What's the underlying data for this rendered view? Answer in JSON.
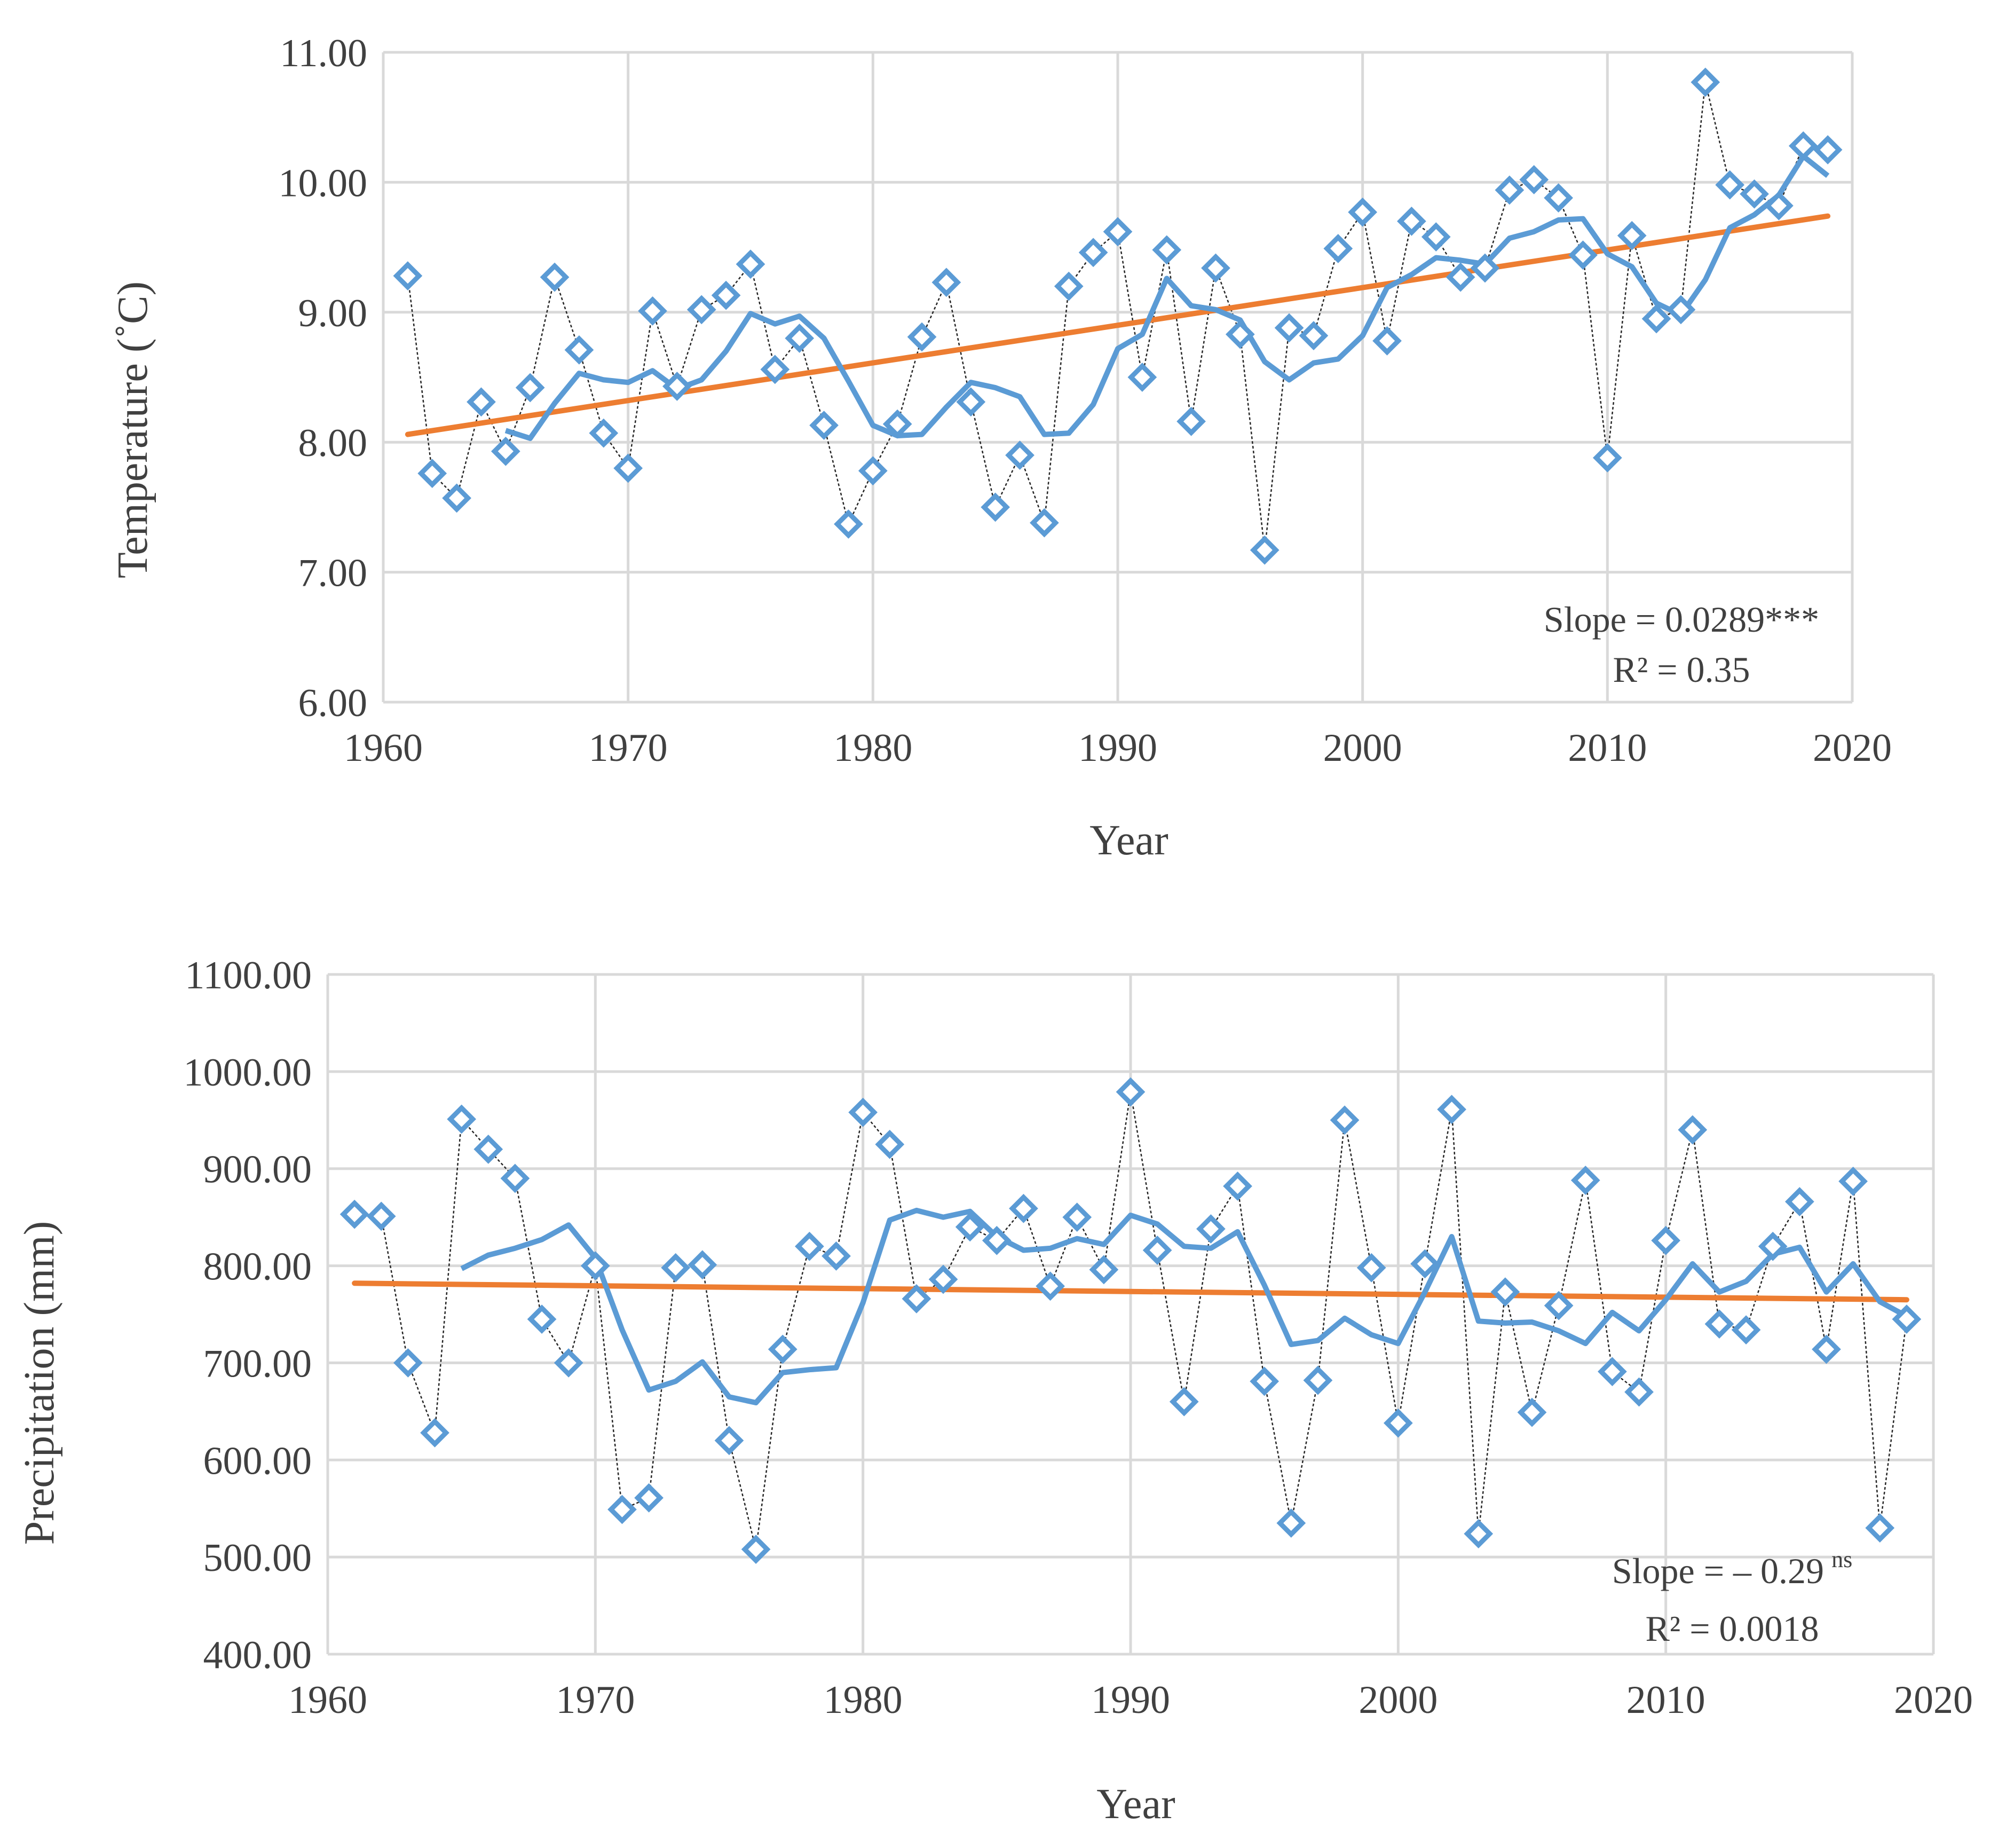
{
  "chart_data": [
    {
      "type": "line",
      "title": "",
      "xlabel": "Year",
      "ylabel": "Temperature (˚C)",
      "xlim": [
        1960,
        2020
      ],
      "ylim": [
        6.0,
        11.0
      ],
      "xticks": [
        1960,
        1970,
        1980,
        1990,
        2000,
        2010,
        2020
      ],
      "yticks": [
        "6.00",
        "7.00",
        "8.00",
        "9.00",
        "10.00",
        "11.00"
      ],
      "grid": true,
      "colors": {
        "series": "#5b9bd5",
        "trend": "#ed7d31",
        "raw_line": "#262626"
      },
      "series": [
        {
          "values": [
            [
              1961,
              9.28
            ],
            [
              1962,
              7.76
            ],
            [
              1963,
              7.57
            ],
            [
              1964,
              8.31
            ],
            [
              1965,
              7.93
            ],
            [
              1966,
              8.42
            ],
            [
              1967,
              9.27
            ],
            [
              1968,
              8.71
            ],
            [
              1969,
              8.07
            ],
            [
              1970,
              7.8
            ],
            [
              1971,
              9.01
            ],
            [
              1972,
              8.43
            ],
            [
              1973,
              9.02
            ],
            [
              1974,
              9.13
            ],
            [
              1975,
              9.37
            ],
            [
              1976,
              8.56
            ],
            [
              1977,
              8.8
            ],
            [
              1978,
              8.13
            ],
            [
              1979,
              7.37
            ],
            [
              1980,
              7.78
            ],
            [
              1981,
              8.14
            ],
            [
              1982,
              8.81
            ],
            [
              1983,
              9.23
            ],
            [
              1984,
              8.31
            ],
            [
              1985,
              7.5
            ],
            [
              1986,
              7.9
            ],
            [
              1987,
              7.38
            ],
            [
              1988,
              9.2
            ],
            [
              1989,
              9.46
            ],
            [
              1990,
              9.62
            ],
            [
              1991,
              8.5
            ],
            [
              1992,
              9.48
            ],
            [
              1993,
              8.16
            ],
            [
              1994,
              9.34
            ],
            [
              1995,
              8.83
            ],
            [
              1996,
              7.17
            ],
            [
              1997,
              8.88
            ],
            [
              1998,
              8.82
            ],
            [
              1999,
              9.49
            ],
            [
              2000,
              9.77
            ],
            [
              2001,
              8.78
            ],
            [
              2002,
              9.7
            ],
            [
              2003,
              9.58
            ],
            [
              2004,
              9.27
            ],
            [
              2005,
              9.34
            ],
            [
              2006,
              9.94
            ],
            [
              2007,
              10.02
            ],
            [
              2008,
              9.88
            ],
            [
              2009,
              9.44
            ],
            [
              2010,
              7.88
            ],
            [
              2011,
              9.59
            ],
            [
              2012,
              8.95
            ],
            [
              2013,
              9.02
            ],
            [
              2014,
              10.77
            ],
            [
              2015,
              9.98
            ],
            [
              2016,
              9.91
            ],
            [
              2017,
              9.82
            ],
            [
              2018,
              10.28
            ],
            [
              2019,
              10.25
            ]
          ]
        },
        {
          "values": [
            [
              1965,
              8.09
            ],
            [
              1966,
              8.03
            ],
            [
              1967,
              8.3
            ],
            [
              1968,
              8.53
            ],
            [
              1969,
              8.48
            ],
            [
              1970,
              8.46
            ],
            [
              1971,
              8.55
            ],
            [
              1972,
              8.41
            ],
            [
              1973,
              8.48
            ],
            [
              1974,
              8.7
            ],
            [
              1975,
              8.99
            ],
            [
              1976,
              8.91
            ],
            [
              1977,
              8.97
            ],
            [
              1978,
              8.8
            ],
            [
              1979,
              8.47
            ],
            [
              1980,
              8.13
            ],
            [
              1981,
              8.05
            ],
            [
              1982,
              8.06
            ],
            [
              1983,
              8.27
            ],
            [
              1984,
              8.46
            ],
            [
              1985,
              8.42
            ],
            [
              1986,
              8.35
            ],
            [
              1987,
              8.06
            ],
            [
              1988,
              8.07
            ],
            [
              1989,
              8.29
            ],
            [
              1990,
              8.72
            ],
            [
              1991,
              8.83
            ],
            [
              1992,
              9.26
            ],
            [
              1993,
              9.05
            ],
            [
              1994,
              9.02
            ],
            [
              1995,
              8.94
            ],
            [
              1996,
              8.62
            ],
            [
              1997,
              8.48
            ],
            [
              1998,
              8.61
            ],
            [
              1999,
              8.64
            ],
            [
              2000,
              8.82
            ],
            [
              2001,
              9.19
            ],
            [
              2002,
              9.29
            ],
            [
              2003,
              9.42
            ],
            [
              2004,
              9.4
            ],
            [
              2005,
              9.37
            ],
            [
              2006,
              9.57
            ],
            [
              2007,
              9.62
            ],
            [
              2008,
              9.71
            ],
            [
              2009,
              9.72
            ],
            [
              2010,
              9.45
            ],
            [
              2011,
              9.35
            ],
            [
              2012,
              9.07
            ],
            [
              2013,
              8.98
            ],
            [
              2014,
              9.25
            ],
            [
              2015,
              9.65
            ],
            [
              2016,
              9.75
            ],
            [
              2017,
              9.9
            ],
            [
              2018,
              10.2
            ],
            [
              2019,
              10.05
            ]
          ]
        },
        {
          "values": [
            [
              1961,
              8.06
            ],
            [
              2019,
              9.74
            ]
          ]
        }
      ],
      "annotations": {
        "slope": "Slope = 0.0289***",
        "r2": "R² = 0.35"
      }
    },
    {
      "type": "line",
      "title": "",
      "xlabel": "Year",
      "ylabel": "Precipitation (mm)",
      "xlim": [
        1960,
        2020
      ],
      "ylim": [
        400,
        1100
      ],
      "xticks": [
        1960,
        1970,
        1980,
        1990,
        2000,
        2010,
        2020
      ],
      "yticks": [
        "400.00",
        "500.00",
        "600.00",
        "700.00",
        "800.00",
        "900.00",
        "1000.00",
        "1100.00"
      ],
      "grid": true,
      "colors": {
        "series": "#5b9bd5",
        "trend": "#ed7d31",
        "raw_line": "#262626"
      },
      "series": [
        {
          "values": [
            [
              1961,
              853
            ],
            [
              1962,
              851
            ],
            [
              1963,
              700
            ],
            [
              1964,
              628
            ],
            [
              1965,
              951
            ],
            [
              1966,
              920
            ],
            [
              1967,
              890
            ],
            [
              1968,
              745
            ],
            [
              1969,
              700
            ],
            [
              1970,
              800
            ],
            [
              1971,
              549
            ],
            [
              1972,
              561
            ],
            [
              1973,
              798
            ],
            [
              1974,
              801
            ],
            [
              1975,
              620
            ],
            [
              1976,
              508
            ],
            [
              1977,
              714
            ],
            [
              1978,
              820
            ],
            [
              1979,
              810
            ],
            [
              1980,
              958
            ],
            [
              1981,
              925
            ],
            [
              1982,
              766
            ],
            [
              1983,
              786
            ],
            [
              1984,
              840
            ],
            [
              1985,
              826
            ],
            [
              1986,
              859
            ],
            [
              1987,
              779
            ],
            [
              1988,
              850
            ],
            [
              1989,
              796
            ],
            [
              1990,
              979
            ],
            [
              1991,
              816
            ],
            [
              1992,
              660
            ],
            [
              1993,
              838
            ],
            [
              1994,
              882
            ],
            [
              1995,
              681
            ],
            [
              1996,
              535
            ],
            [
              1997,
              682
            ],
            [
              1998,
              950
            ],
            [
              1999,
              798
            ],
            [
              2000,
              638
            ],
            [
              2001,
              802
            ],
            [
              2002,
              961
            ],
            [
              2003,
              524
            ],
            [
              2004,
              773
            ],
            [
              2005,
              649
            ],
            [
              2006,
              759
            ],
            [
              2007,
              888
            ],
            [
              2008,
              691
            ],
            [
              2009,
              670
            ],
            [
              2010,
              826
            ],
            [
              2011,
              940
            ],
            [
              2012,
              740
            ],
            [
              2013,
              734
            ],
            [
              2014,
              820
            ],
            [
              2015,
              866
            ],
            [
              2016,
              714
            ],
            [
              2017,
              887
            ],
            [
              2018,
              530
            ],
            [
              2019,
              745
            ]
          ]
        },
        {
          "values": [
            [
              1965,
              797
            ],
            [
              1966,
              811
            ],
            [
              1967,
              818
            ],
            [
              1968,
              827
            ],
            [
              1969,
              842
            ],
            [
              1970,
              808
            ],
            [
              1971,
              734
            ],
            [
              1972,
              672
            ],
            [
              1973,
              681
            ],
            [
              1974,
              701
            ],
            [
              1975,
              665
            ],
            [
              1976,
              659
            ],
            [
              1977,
              690
            ],
            [
              1978,
              693
            ],
            [
              1979,
              695
            ],
            [
              1980,
              762
            ],
            [
              1981,
              847
            ],
            [
              1982,
              857
            ],
            [
              1983,
              850
            ],
            [
              1984,
              856
            ],
            [
              1985,
              830
            ],
            [
              1986,
              816
            ],
            [
              1987,
              818
            ],
            [
              1988,
              828
            ],
            [
              1989,
              822
            ],
            [
              1990,
              852
            ],
            [
              1991,
              843
            ],
            [
              1992,
              820
            ],
            [
              1993,
              818
            ],
            [
              1994,
              835
            ],
            [
              1995,
              780
            ],
            [
              1996,
              719
            ],
            [
              1997,
              723
            ],
            [
              1998,
              746
            ],
            [
              1999,
              729
            ],
            [
              2000,
              720
            ],
            [
              2001,
              773
            ],
            [
              2002,
              830
            ],
            [
              2003,
              743
            ],
            [
              2004,
              741
            ],
            [
              2005,
              742
            ],
            [
              2006,
              733
            ],
            [
              2007,
              720
            ],
            [
              2008,
              752
            ],
            [
              2009,
              733
            ],
            [
              2010,
              765
            ],
            [
              2011,
              802
            ],
            [
              2012,
              773
            ],
            [
              2013,
              784
            ],
            [
              2014,
              812
            ],
            [
              2015,
              819
            ],
            [
              2016,
              773
            ],
            [
              2017,
              802
            ],
            [
              2018,
              763
            ],
            [
              2019,
              748
            ]
          ]
        },
        {
          "values": [
            [
              1961,
              782
            ],
            [
              2019,
              765
            ]
          ]
        }
      ],
      "annotations": {
        "slope": "Slope = – 0.29",
        "slope_sup": "ns",
        "r2": "R² = 0.0018"
      }
    }
  ]
}
